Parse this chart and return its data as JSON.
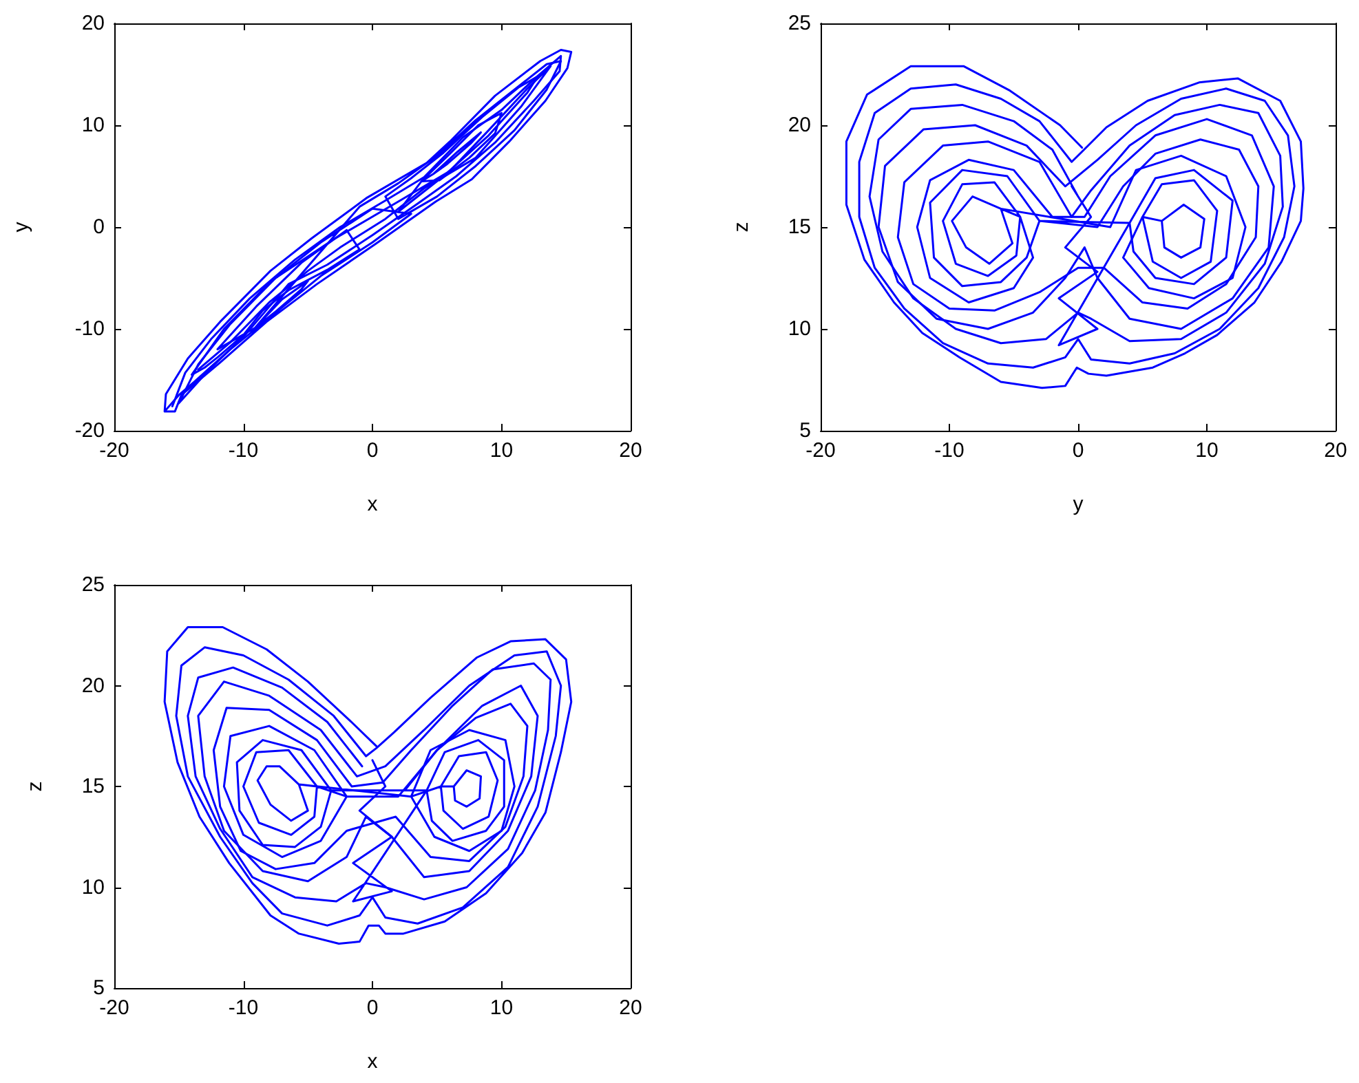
{
  "chart_data": [
    {
      "type": "line",
      "xlabel": "x",
      "ylabel": "y",
      "xlim": [
        -20,
        20
      ],
      "xticks": [
        -20,
        -10,
        0,
        10,
        20
      ],
      "ylim": [
        -20,
        20
      ],
      "yticks": [
        -20,
        -10,
        0,
        10,
        20
      ],
      "marker": "none",
      "series": [
        {
          "color": "#0000ff",
          "x": [
            -16.1,
            -16.0,
            -14.3,
            -11.8,
            -7.9,
            -4.7,
            -0.4,
            4.2,
            6.0,
            9.5,
            13.0,
            14.6,
            15.4,
            15.1,
            13.4,
            10.6,
            7.7,
            4.9,
            0.3,
            -4.3,
            -8.2,
            -11.8,
            -14.8,
            -15.3,
            -16.1,
            -15,
            -13.8,
            -11,
            -7.5,
            -4,
            0,
            3,
            0,
            -4,
            -8,
            -11.5,
            -14,
            -13,
            -12,
            -10,
            -8.5,
            -6.5,
            -3.5,
            -1,
            -2,
            -5.5,
            -9,
            -12,
            -9.1,
            -7.5,
            -5.5,
            -5.0,
            -7.0,
            -9.1,
            -1,
            2,
            5,
            8,
            11,
            13.5,
            14.6,
            13.5,
            11,
            8,
            5,
            2,
            1,
            3,
            5.5,
            8.5,
            11.3,
            12.8,
            12,
            9,
            5.5,
            2,
            3.8,
            6,
            8.2,
            10,
            9.5,
            7.5,
            5.2,
            3.8,
            4.7,
            6.6,
            8.4,
            7.6,
            5.8,
            4.7
          ],
          "values": [
            -18.1,
            -16.4,
            -12.9,
            -9.3,
            -4.3,
            -1.1,
            2.9,
            6.3,
            8.4,
            12.9,
            16.3,
            17.4,
            17.2,
            15.6,
            12.4,
            8.4,
            4.7,
            2.5,
            -1.6,
            -5.6,
            -9.3,
            -13.3,
            -16.5,
            -18.1,
            -18.1,
            -16.5,
            -15.2,
            -12,
            -8.4,
            -4.8,
            -1.5,
            1.3,
            1.8,
            -1.5,
            -5.5,
            -10,
            -14.5,
            -13.8,
            -12.8,
            -10.6,
            -8.2,
            -6.2,
            -4.2,
            -2.2,
            -0.3,
            -3.5,
            -7.8,
            -12,
            -9.9,
            -8.3,
            -6.1,
            -5.3,
            -7.1,
            -9.9,
            2,
            4.3,
            7,
            10.5,
            13.5,
            16,
            16.3,
            13.5,
            9.5,
            6,
            3,
            0.8,
            3,
            4.8,
            7.3,
            10.8,
            13.7,
            14.8,
            13.2,
            9,
            5,
            1.5,
            4.5,
            7.2,
            10,
            11.2,
            9.2,
            6.8,
            4.6,
            4.5,
            5.2,
            7.4,
            9.3,
            8.2,
            6.2,
            5.2
          ]
        },
        {
          "color": "#0000ff",
          "x": [
            -15.5,
            -14.5,
            -12.5,
            -9.5,
            -6,
            -2.5,
            1,
            4,
            7,
            10,
            12.5,
            14.6,
            14.5,
            12.5,
            9.5,
            6.5,
            3.5,
            0,
            -3.5,
            -6.5,
            -9.8,
            -12.8,
            -15,
            -13.5,
            -11,
            -7.5,
            -3,
            2,
            6,
            9,
            12,
            13.8,
            11.5,
            8,
            4,
            1,
            -2.5,
            -5,
            -8,
            -11,
            -13.5
          ],
          "values": [
            -17.6,
            -14.3,
            -11,
            -7,
            -3.2,
            0,
            2.6,
            4.9,
            8.8,
            11.5,
            14.5,
            16.8,
            15.3,
            12.4,
            8.3,
            5,
            2.3,
            -0.8,
            -3.7,
            -5.6,
            -10.5,
            -14.2,
            -17.3,
            -13.5,
            -9.5,
            -5,
            -1.2,
            2.5,
            5.5,
            9.5,
            13.6,
            15.8,
            11.8,
            6.8,
            3.8,
            0.8,
            -2,
            -4.3,
            -7.4,
            -11.3,
            -14
          ]
        }
      ]
    },
    {
      "type": "line",
      "xlabel": "y",
      "ylabel": "z",
      "xlim": [
        -20,
        20
      ],
      "xticks": [
        -20,
        -10,
        0,
        10,
        20
      ],
      "ylim": [
        5,
        25
      ],
      "yticks": [
        5,
        10,
        15,
        20,
        25
      ],
      "marker": "none",
      "series": [
        {
          "color": "#0000ff",
          "x": [
            0.3,
            -1.4,
            -5.3,
            -8.9,
            -13.0,
            -16.4,
            -18.0,
            -18.0,
            -16.6,
            -14.3,
            -12.1,
            -9.2,
            -6.0,
            -2.8,
            -1.0,
            -0.1,
            0.8,
            2.2,
            5.8,
            8.3,
            10.8,
            13.7,
            15.8,
            17.3,
            17.5,
            17.3,
            15.7,
            12.4,
            9.4,
            5.4,
            2.2,
            0.3,
            -0.5,
            -3,
            -6,
            -9.5,
            -13,
            -15.8,
            -17,
            -17,
            -15.8,
            -13.5,
            -10.5,
            -7,
            -3.5,
            -1,
            0,
            1,
            4,
            7.5,
            11,
            14,
            16,
            16.8,
            16.3,
            14.5,
            11.5,
            8,
            4.5,
            1.5,
            -1,
            -4,
            -8,
            -12,
            -15,
            -15.5,
            -14,
            -11,
            -7,
            -3.5,
            -1,
            0.5,
            1.5,
            4,
            8,
            12,
            14.8,
            15.2,
            13.5,
            10,
            6,
            2.5,
            0.5,
            -2,
            -5,
            -8.5,
            -11.5,
            -12.5,
            -11.5,
            -8.5,
            -5,
            -3.5,
            -4.5,
            -6.5,
            -9,
            -10.5,
            -9.5,
            -7,
            -4.8,
            -4.5,
            -6,
            -8.2,
            -9.8,
            -8.7,
            -6.9,
            -5.1,
            -6,
            2.5,
            4.5,
            8,
            11.5,
            13,
            12,
            9,
            5.5,
            3.5,
            5,
            6.5,
            9,
            10.8,
            10.3,
            8,
            5.8,
            5,
            6.5,
            8.2,
            9.8,
            9.5,
            8,
            6.7,
            6.5
          ],
          "values": [
            18.9,
            20.0,
            21.7,
            22.9,
            22.9,
            21.5,
            19.2,
            16.1,
            13.4,
            11.3,
            9.8,
            8.6,
            7.4,
            7.1,
            7.2,
            8.1,
            7.8,
            7.7,
            8.1,
            8.8,
            9.7,
            11.3,
            13.3,
            15.3,
            16.9,
            19.2,
            21.2,
            22.3,
            22.1,
            21.2,
            19.9,
            18.7,
            18.2,
            20.2,
            21.3,
            22.0,
            21.8,
            20.6,
            18.2,
            15.5,
            13,
            11,
            9.3,
            8.3,
            8.1,
            8.6,
            9.5,
            8.5,
            8.3,
            8.8,
            10,
            12,
            14.5,
            17,
            19.5,
            21.2,
            21.8,
            21.3,
            20,
            18.3,
            17,
            19,
            20,
            19.8,
            18,
            15,
            12.3,
            10.5,
            10,
            10.8,
            12.5,
            14,
            12.5,
            10.5,
            10,
            11.5,
            14,
            17,
            19.5,
            20.3,
            19.5,
            17.5,
            15.5,
            15.5,
            17.8,
            18.3,
            17.3,
            15,
            12.5,
            11.3,
            12,
            13.5,
            15.5,
            17.2,
            17.1,
            15.3,
            13.2,
            12.6,
            13.6,
            15.5,
            15.9,
            16.5,
            15.3,
            14.0,
            13.2,
            14.2,
            15.9,
            15,
            17.8,
            18.5,
            17.5,
            15,
            12.5,
            11.5,
            12,
            13.5,
            15.5,
            17.1,
            17.3,
            15.8,
            13.3,
            12.5,
            13.3,
            15.5,
            15.3,
            16.1,
            15.4,
            14,
            13.5,
            14,
            15.3
          ]
        },
        {
          "color": "#0000ff",
          "x": [
            0,
            -2,
            -5,
            -9,
            -13,
            -15.5,
            -16.2,
            -15.2,
            -12.8,
            -9.5,
            -6,
            -2.5,
            0,
            1,
            4,
            8,
            11.5,
            14.5,
            15.9,
            15.7,
            14,
            11,
            7.5,
            4,
            1,
            -0.5,
            -3,
            -7,
            -10.5,
            -13.5,
            -14,
            -12.8,
            -10,
            -6.5,
            -3,
            0,
            2,
            5,
            8.5,
            11.5,
            13.8,
            14,
            12.5,
            9.5,
            6,
            3.5,
            1.5,
            -3,
            -5.5,
            -9,
            -11.5,
            -11.2,
            -9,
            -6,
            -4,
            -3,
            4,
            6,
            9,
            12,
            11.5,
            9,
            6,
            4.3,
            4,
            -1.5,
            1.5,
            -1.5,
            1.5,
            -1,
            1,
            -0.5
          ],
          "values": [
            16.5,
            18.8,
            20.2,
            21,
            20.8,
            19.3,
            16.5,
            13.8,
            11.5,
            10,
            9.3,
            9.5,
            10.8,
            10.5,
            9.4,
            9.5,
            10.8,
            13.2,
            16,
            18.5,
            20.6,
            21,
            20.5,
            19,
            16.8,
            15.5,
            18.2,
            19.2,
            19,
            17.2,
            14.5,
            12.2,
            11,
            10.9,
            11.8,
            13,
            13,
            11.3,
            11,
            12.2,
            14.5,
            17,
            18.8,
            19.3,
            18.6,
            17,
            15,
            15.3,
            17.5,
            17.8,
            16.2,
            13.5,
            12.1,
            12.3,
            13.5,
            15.3,
            15.2,
            17.4,
            17.8,
            16.3,
            13.5,
            12.2,
            12.5,
            13.8,
            15.2,
            9.2,
            10,
            11.5,
            12.8,
            14,
            15.5,
            17
          ]
        }
      ]
    },
    {
      "type": "line",
      "xlabel": "x",
      "ylabel": "z",
      "xlim": [
        -20,
        20
      ],
      "xticks": [
        -20,
        -10,
        0,
        10,
        20
      ],
      "ylim": [
        5,
        25
      ],
      "yticks": [
        5,
        10,
        15,
        20,
        25
      ],
      "marker": "none",
      "series": [
        {
          "color": "#0000ff",
          "x": [
            0.3,
            -1.8,
            -5.0,
            -8.2,
            -11.6,
            -14.3,
            -15.9,
            -16.1,
            -15.1,
            -13.4,
            -11.1,
            -7.9,
            -5.7,
            -2.6,
            -1.0,
            -0.3,
            0.5,
            1.0,
            2.4,
            5.6,
            8.8,
            11.6,
            13.4,
            14.6,
            15.4,
            15.0,
            13.4,
            10.7,
            8.1,
            4.5,
            1.7,
            0.3,
            -0.5,
            -3,
            -6.5,
            -10,
            -13,
            -14.8,
            -15.2,
            -14.3,
            -11.8,
            -9.3,
            -7,
            -3.5,
            -1,
            0,
            1,
            3.5,
            7,
            10.5,
            12.8,
            14.2,
            14.6,
            13.5,
            11,
            7.5,
            4,
            1,
            -1.2,
            -4,
            -8,
            -11.5,
            -13.5,
            -13,
            -11.5,
            -8.5,
            -5,
            -2,
            -0.5,
            1.5,
            4,
            7.5,
            10.5,
            12.3,
            12.8,
            11.5,
            8.5,
            5,
            2,
            -2,
            -4.5,
            -8,
            -11,
            -11.5,
            -10,
            -7,
            -4,
            -2,
            -4.3,
            -6.5,
            -9,
            -10,
            -8.8,
            -6.3,
            -4.5,
            -4.3,
            -5.7,
            -7.2,
            -8.2,
            -8.9,
            -7.9,
            -6.3,
            -5.0,
            -5.7,
            3,
            4.5,
            7.5,
            10.3,
            11,
            10,
            7.5,
            4.8,
            3,
            5.3,
            6.7,
            8.8,
            9.7,
            9,
            7,
            5.5,
            5.3,
            6.3,
            7.3,
            8.4,
            8.3,
            7.3,
            6.4,
            6.3
          ],
          "values": [
            17.0,
            18.3,
            20.2,
            21.8,
            22.9,
            22.9,
            21.7,
            19.2,
            16.2,
            13.5,
            11.2,
            8.6,
            7.7,
            7.2,
            7.3,
            8.1,
            8.1,
            7.7,
            7.7,
            8.3,
            9.7,
            11.7,
            13.7,
            16.7,
            19.2,
            21.3,
            22.3,
            22.2,
            21.4,
            19.4,
            17.7,
            16.9,
            16.5,
            18.5,
            20.3,
            21.5,
            21.9,
            21,
            18.5,
            15.5,
            12.5,
            10.2,
            8.7,
            8.1,
            8.6,
            9.5,
            8.5,
            8.2,
            9,
            11,
            14,
            17.5,
            20,
            21.7,
            21.5,
            20,
            17.8,
            16,
            15.5,
            17.8,
            19.5,
            20.2,
            18.5,
            15.5,
            12.8,
            10.8,
            10.3,
            11.5,
            13.5,
            12.5,
            10.5,
            10.8,
            12.8,
            15.5,
            18.5,
            20,
            19,
            16.8,
            14.5,
            14.5,
            16.8,
            18,
            17.5,
            15,
            12.6,
            11.5,
            12.3,
            14.5,
            15,
            16.8,
            16.7,
            15,
            13.2,
            12.6,
            13.5,
            15,
            15.1,
            16.0,
            16.0,
            15.3,
            14.1,
            13.3,
            13.8,
            15.1,
            14.5,
            16.8,
            17.8,
            17.3,
            15,
            12.8,
            11.8,
            12.5,
            14.5,
            15,
            16.5,
            16.7,
            15.3,
            13.5,
            12.9,
            13.8,
            15,
            15,
            15.8,
            15.5,
            14.4,
            14.0,
            14.3,
            15
          ]
        },
        {
          "color": "#0000ff",
          "x": [
            -0.8,
            -3.5,
            -7,
            -10.8,
            -13.5,
            -14.3,
            -13.7,
            -11.8,
            -9.3,
            -6,
            -2.8,
            -0.5,
            1,
            4,
            7.3,
            10.5,
            12.6,
            13.6,
            13.8,
            12.5,
            9.3,
            6.2,
            3,
            0.8,
            -1.6,
            -4.3,
            -8,
            -11.3,
            -12.3,
            -11.8,
            -10.2,
            -7.5,
            -4.5,
            -2,
            1.8,
            4.5,
            7.5,
            10.3,
            11.7,
            12,
            10.7,
            8,
            5,
            2.5,
            -3.2,
            -5.5,
            -8.5,
            -10.5,
            -10.3,
            -8.5,
            -6,
            -4,
            -3.2,
            4.2,
            5.6,
            8.2,
            10.2,
            10.2,
            8.8,
            6.2,
            4.6,
            4.2,
            -1.5,
            1.5,
            -1.5,
            1.5,
            -1,
            1,
            0
          ],
          "values": [
            16,
            18.2,
            19.9,
            20.9,
            20.4,
            18.5,
            15.5,
            12.9,
            10.5,
            9.5,
            9.3,
            10.2,
            10,
            9.4,
            10,
            11.9,
            14.8,
            17.8,
            20.3,
            21.1,
            20.8,
            19,
            16.8,
            15.2,
            15,
            17.3,
            18.8,
            18.9,
            16.8,
            14,
            11.8,
            10.9,
            11.2,
            12.8,
            13.5,
            11.5,
            11.3,
            13,
            15.5,
            18,
            19.1,
            18.4,
            16.8,
            14.8,
            14.8,
            16.8,
            17.3,
            16.2,
            13.8,
            12.1,
            12,
            13,
            14.8,
            14.8,
            16.7,
            17.3,
            16.3,
            14,
            12.8,
            12.3,
            13.3,
            14.8,
            9.3,
            9.8,
            11.2,
            12.5,
            13.8,
            15,
            16.3
          ]
        }
      ]
    }
  ]
}
